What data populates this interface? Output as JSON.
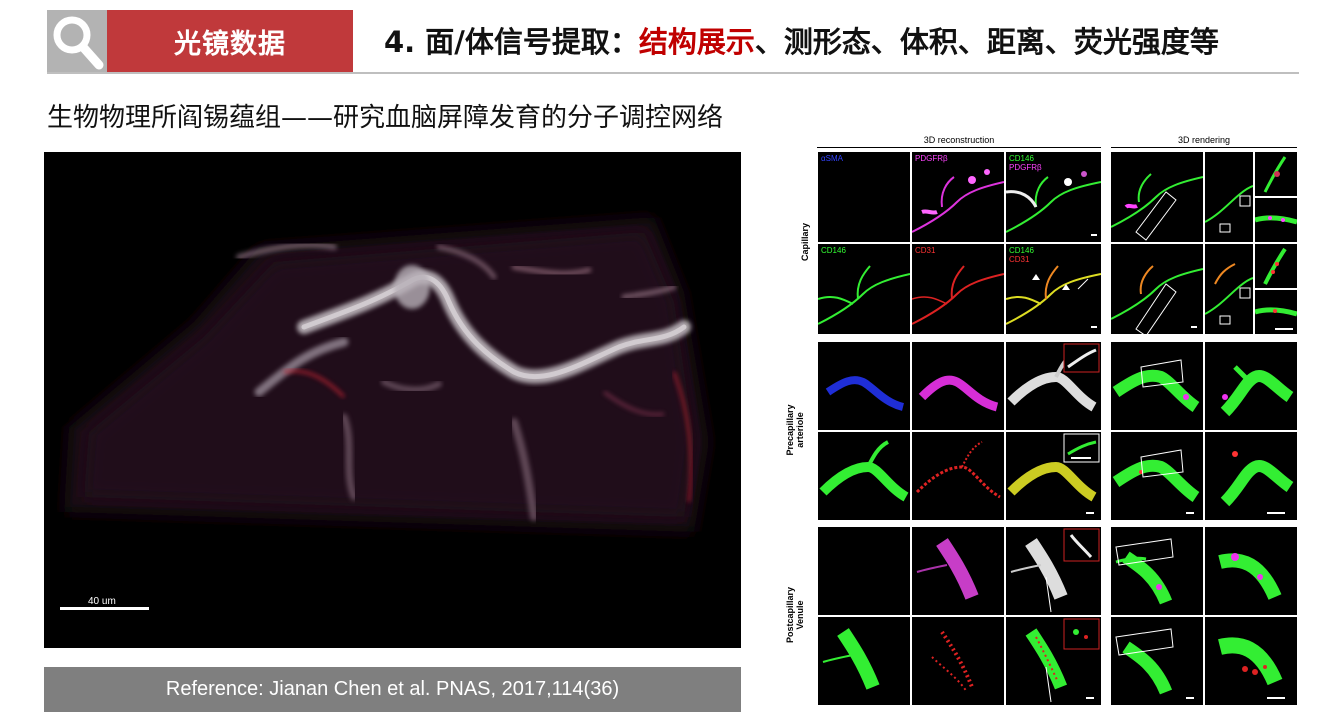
{
  "header": {
    "section_label": "光镜数据",
    "title_prefix": "4. 面/体信号提取：",
    "title_highlight": "结构展示",
    "title_suffix": "、测形态、体积、距离、荧光强度等",
    "accent_color": "#c0393b"
  },
  "subtitle": "生物物理所阎锡蕴组——研究血脑屏障发育的分子调控网络",
  "micrograph": {
    "scale_label": "40 um"
  },
  "reference": "Reference: Jianan Chen et al. PNAS, 2017,114(36)",
  "figure": {
    "col_headers": [
      "3D reconstruction",
      "3D rendering"
    ],
    "rows": [
      {
        "label": "Capillary"
      },
      {
        "label": "Precapillary arteriole"
      },
      {
        "label": "Postcapillary Venule"
      }
    ],
    "panel_labels": {
      "r1c1": "αSMA",
      "r1c2": "PDGFRβ",
      "r1c3a": "CD146",
      "r1c3b": "PDGFRβ",
      "r2c1": "CD146",
      "r2c2": "CD31",
      "r2c3a": "CD146",
      "r2c3b": "CD31"
    },
    "colors": {
      "green": "#33ff33",
      "magenta": "#ff33ff",
      "blue": "#2233ff",
      "red": "#ff2222"
    }
  }
}
